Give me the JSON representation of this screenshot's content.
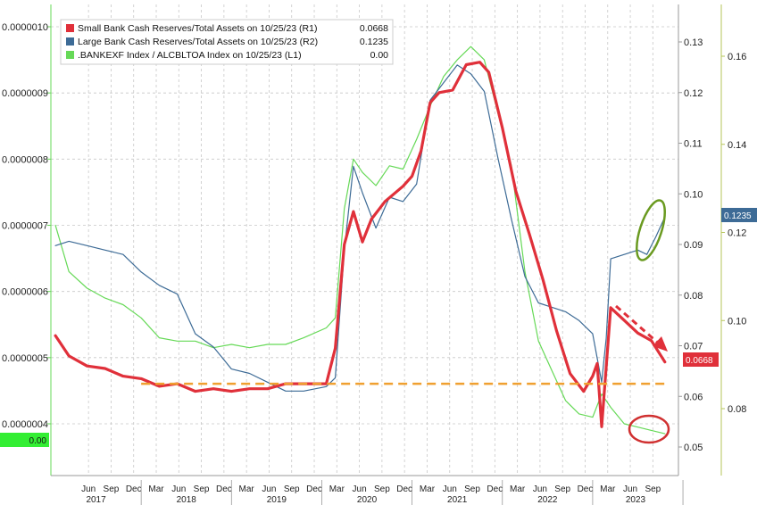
{
  "chart_data": {
    "type": "line",
    "legend": {
      "placement": "top-left",
      "entries": [
        {
          "label": "Small Bank Cash Reserves/Total Assets on 10/25/23 (R1)",
          "value": "0.0668",
          "color": "#e0303a"
        },
        {
          "label": "Large Bank Cash Reserves/Total Assets on 10/25/23 (R2)",
          "value": "0.1235",
          "color": "#3d6b96"
        },
        {
          "label": ".BANKEXF Index / ALCBLTOA Index on 10/25/23 (L1)",
          "value": "0.00",
          "color": "#66d957"
        }
      ]
    },
    "left_axis": {
      "ticks": [
        "0.0000010",
        "0.0000009",
        "0.0000008",
        "0.0000007",
        "0.0000006",
        "0.0000005",
        "0.0000004"
      ],
      "badge": "0.00",
      "badge_color": "#33ee33"
    },
    "right_axis_1": {
      "ticks": [
        "0.13",
        "0.12",
        "0.11",
        "0.10",
        "0.09",
        "0.08",
        "0.07",
        "0.06",
        "0.05"
      ],
      "badge": "0.0668",
      "badge_color": "#e0303a"
    },
    "right_axis_2": {
      "ticks": [
        "0.16",
        "0.14",
        "0.12",
        "0.10",
        "0.08"
      ],
      "badge": "0.1235",
      "badge_color": "#3d6b96"
    },
    "x_axis": {
      "months": [
        "Jun",
        "Sep",
        "Dec",
        "Mar",
        "Jun",
        "Sep",
        "Dec",
        "Mar",
        "Jun",
        "Sep",
        "Dec",
        "Mar",
        "Jun",
        "Sep",
        "Dec",
        "Mar",
        "Jun",
        "Sep",
        "Dec",
        "Mar",
        "Jun",
        "Sep",
        "Dec",
        "Mar",
        "Jun",
        "Sep"
      ],
      "years": [
        "2017",
        "2018",
        "2019",
        "2020",
        "2021",
        "2022",
        "2023"
      ]
    },
    "grid": true,
    "series": [
      {
        "name": "Small Bank Cash Reserves/Total Assets on 10/25/23 (R1)",
        "axis": "R1",
        "color": "#e0303a",
        "x": [
          2017.05,
          2017.2,
          2017.4,
          2017.6,
          2017.8,
          2018.0,
          2018.2,
          2018.4,
          2018.6,
          2018.8,
          2019.0,
          2019.2,
          2019.4,
          2019.6,
          2019.8,
          2020.05,
          2020.15,
          2020.25,
          2020.35,
          2020.45,
          2020.55,
          2020.7,
          2020.9,
          2021.0,
          2021.1,
          2021.2,
          2021.3,
          2021.45,
          2021.6,
          2021.75,
          2021.85,
          2022.0,
          2022.15,
          2022.3,
          2022.45,
          2022.6,
          2022.75,
          2022.9,
          2023.0,
          2023.05,
          2023.1,
          2023.2,
          2023.35,
          2023.5,
          2023.65,
          2023.8
        ],
        "y": [
          0.072,
          0.068,
          0.066,
          0.0655,
          0.064,
          0.0635,
          0.062,
          0.0625,
          0.061,
          0.0615,
          0.061,
          0.0615,
          0.0615,
          0.0625,
          0.0625,
          0.0625,
          0.0695,
          0.09,
          0.0965,
          0.0905,
          0.095,
          0.0985,
          0.1015,
          0.1035,
          0.1085,
          0.118,
          0.12,
          0.1205,
          0.1255,
          0.126,
          0.124,
          0.113,
          0.1005,
          0.092,
          0.083,
          0.073,
          0.0645,
          0.061,
          0.064,
          0.0665,
          0.054,
          0.0775,
          0.075,
          0.0725,
          0.071,
          0.0668
        ]
      },
      {
        "name": "Large Bank Cash Reserves/Total Assets on 10/25/23 (R2)",
        "axis": "R2",
        "color": "#3d6b96",
        "x": [
          2017.05,
          2017.2,
          2017.4,
          2017.6,
          2017.8,
          2018.0,
          2018.2,
          2018.4,
          2018.6,
          2018.8,
          2019.0,
          2019.2,
          2019.4,
          2019.6,
          2019.8,
          2020.05,
          2020.15,
          2020.25,
          2020.35,
          2020.45,
          2020.6,
          2020.75,
          2020.9,
          2021.05,
          2021.2,
          2021.35,
          2021.5,
          2021.65,
          2021.8,
          2021.95,
          2022.1,
          2022.25,
          2022.4,
          2022.55,
          2022.7,
          2022.85,
          2023.0,
          2023.1,
          2023.15,
          2023.2,
          2023.35,
          2023.5,
          2023.6,
          2023.7,
          2023.8
        ],
        "y": [
          0.117,
          0.118,
          0.117,
          0.116,
          0.115,
          0.111,
          0.108,
          0.106,
          0.097,
          0.094,
          0.089,
          0.088,
          0.086,
          0.084,
          0.084,
          0.085,
          0.087,
          0.116,
          0.135,
          0.129,
          0.121,
          0.128,
          0.127,
          0.131,
          0.15,
          0.154,
          0.158,
          0.156,
          0.152,
          0.137,
          0.123,
          0.11,
          0.104,
          0.103,
          0.102,
          0.1,
          0.097,
          0.086,
          0.096,
          0.114,
          0.115,
          0.116,
          0.115,
          0.119,
          0.1235
        ]
      },
      {
        "name": ".BANKEXF Index / ALCBLTOA Index on 10/25/23 (L1)",
        "axis": "L1",
        "color": "#66d957",
        "x": [
          2017.05,
          2017.2,
          2017.4,
          2017.6,
          2017.8,
          2018.0,
          2018.2,
          2018.4,
          2018.6,
          2018.8,
          2019.0,
          2019.2,
          2019.4,
          2019.6,
          2019.8,
          2020.05,
          2020.15,
          2020.25,
          2020.35,
          2020.45,
          2020.6,
          2020.75,
          2020.9,
          2021.05,
          2021.2,
          2021.35,
          2021.5,
          2021.65,
          2021.8,
          2021.95,
          2022.1,
          2022.25,
          2022.4,
          2022.55,
          2022.7,
          2022.85,
          2023.0,
          2023.1,
          2023.2,
          2023.35,
          2023.5,
          2023.65,
          2023.8
        ],
        "y": [
          7e-07,
          6.3e-07,
          6.05e-07,
          5.9e-07,
          5.8e-07,
          5.6e-07,
          5.3e-07,
          5.25e-07,
          5.25e-07,
          5.15e-07,
          5.2e-07,
          5.15e-07,
          5.2e-07,
          5.2e-07,
          5.3e-07,
          5.45e-07,
          5.6e-07,
          7.25e-07,
          8e-07,
          7.8e-07,
          7.6e-07,
          7.9e-07,
          7.85e-07,
          8.3e-07,
          8.8e-07,
          9.25e-07,
          9.5e-07,
          9.7e-07,
          9.5e-07,
          8.7e-07,
          7.9e-07,
          6.3e-07,
          5.25e-07,
          4.8e-07,
          4.35e-07,
          4.15e-07,
          4.1e-07,
          4.45e-07,
          4.25e-07,
          4e-07,
          3.95e-07,
          3.9e-07,
          3.85e-07
        ]
      }
    ],
    "annotations": {
      "floor_line": "dashed orange horizontal line near R1 0.0625",
      "circles": [
        "green ellipse on Large Bank series (Aug-Oct 2023)",
        "red ellipse on L1 series (Aug-Oct 2023)"
      ],
      "arrow": "red dashed arrow pointing down-right (2023)"
    }
  }
}
